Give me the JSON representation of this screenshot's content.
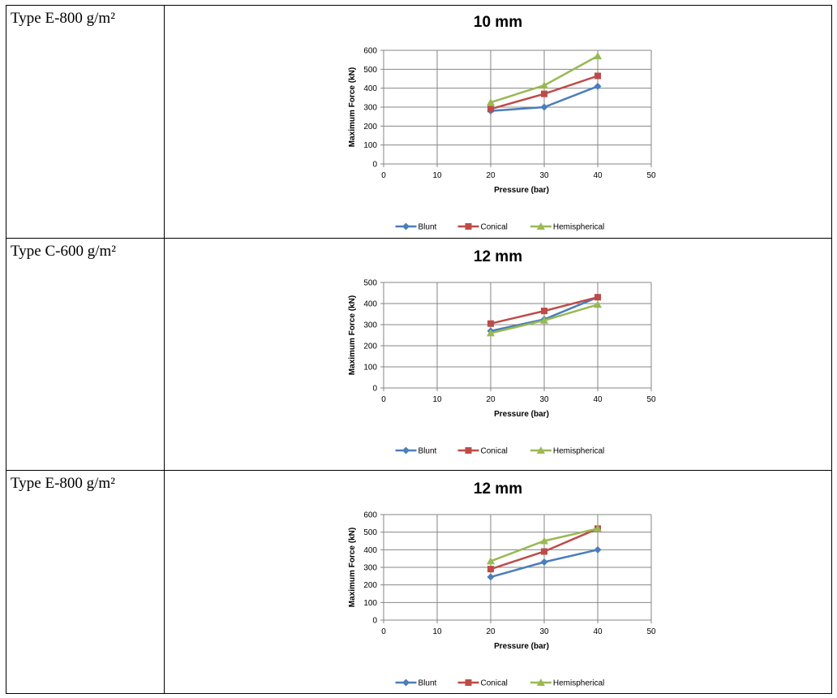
{
  "rows": [
    {
      "label": "Type E-800 g/m²"
    },
    {
      "label": "Type C-600 g/m²"
    },
    {
      "label": "Type E-800 g/m²"
    }
  ],
  "colors": {
    "Blunt": "#4a7ebb",
    "Conical": "#be4b48",
    "Hemispherical": "#98b954"
  },
  "chart_data": [
    {
      "type": "line",
      "title": "10 mm",
      "xlabel": "Pressure (bar)",
      "ylabel": "Maximum Force (kN)",
      "xlim": [
        0,
        50
      ],
      "xticks": [
        0,
        10,
        20,
        30,
        40,
        50
      ],
      "ylim": [
        0,
        600
      ],
      "yticks": [
        0,
        100,
        200,
        300,
        400,
        500,
        600
      ],
      "grid": true,
      "legend": "bottom",
      "x": [
        20,
        30,
        40
      ],
      "series": [
        {
          "name": "Blunt",
          "marker": "diamond",
          "values": [
            280,
            300,
            410
          ]
        },
        {
          "name": "Conical",
          "marker": "square",
          "values": [
            290,
            370,
            465
          ]
        },
        {
          "name": "Hemispherical",
          "marker": "triangle",
          "values": [
            325,
            415,
            570
          ]
        }
      ]
    },
    {
      "type": "line",
      "title": "12 mm",
      "xlabel": "Pressure (bar)",
      "ylabel": "Maximum Force (kN)",
      "xlim": [
        0,
        50
      ],
      "xticks": [
        0,
        10,
        20,
        30,
        40,
        50
      ],
      "ylim": [
        0,
        500
      ],
      "yticks": [
        0,
        100,
        200,
        300,
        400,
        500
      ],
      "grid": true,
      "legend": "bottom",
      "x": [
        20,
        30,
        40
      ],
      "series": [
        {
          "name": "Blunt",
          "marker": "diamond",
          "values": [
            270,
            325,
            430
          ]
        },
        {
          "name": "Conical",
          "marker": "square",
          "values": [
            305,
            365,
            430
          ]
        },
        {
          "name": "Hemispherical",
          "marker": "triangle",
          "values": [
            260,
            320,
            395
          ]
        }
      ]
    },
    {
      "type": "line",
      "title": "12 mm",
      "xlabel": "Pressure (bar)",
      "ylabel": "Maximum Force (kN)",
      "xlim": [
        0,
        50
      ],
      "xticks": [
        0,
        10,
        20,
        30,
        40,
        50
      ],
      "ylim": [
        0,
        600
      ],
      "yticks": [
        0,
        100,
        200,
        300,
        400,
        500,
        600
      ],
      "grid": true,
      "legend": "bottom",
      "x": [
        20,
        30,
        40
      ],
      "series": [
        {
          "name": "Blunt",
          "marker": "diamond",
          "values": [
            245,
            330,
            400
          ]
        },
        {
          "name": "Conical",
          "marker": "square",
          "values": [
            290,
            390,
            520
          ]
        },
        {
          "name": "Hemispherical",
          "marker": "triangle",
          "values": [
            335,
            450,
            520
          ]
        }
      ]
    }
  ]
}
